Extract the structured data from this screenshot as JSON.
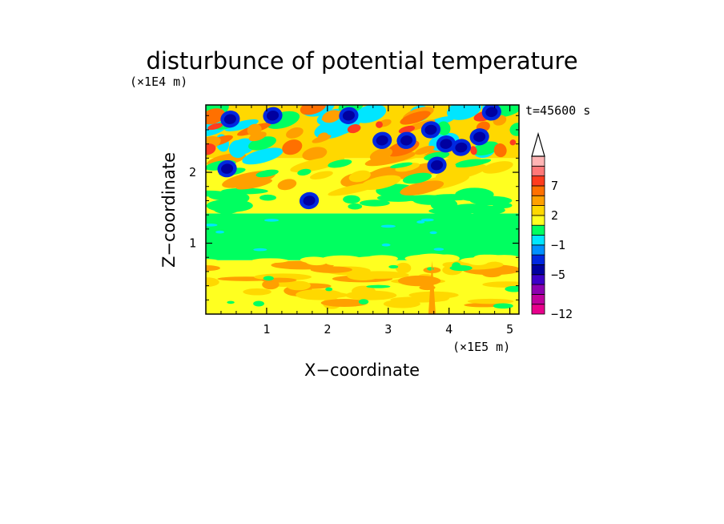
{
  "chart_data": {
    "type": "heatmap",
    "title": "disturbunce of potential temperature",
    "time_label": "t=45600 s",
    "xlabel": "X−coordinate",
    "ylabel": "Z−coordinate",
    "x_unit": "(×1E5 m)",
    "y_unit": "(×1E4 m)",
    "xlim": [
      0,
      5.15
    ],
    "ylim": [
      0,
      2.95
    ],
    "x_ticks": [
      "1",
      "2",
      "3",
      "4",
      "5"
    ],
    "y_ticks": [
      "1",
      "2"
    ],
    "colorbar": {
      "levels": [
        -12,
        -10,
        -8,
        -6,
        -5,
        -4,
        -2,
        -1,
        0,
        1,
        2,
        3,
        5,
        7,
        9,
        11
      ],
      "colors": [
        "#e8008c",
        "#c0009c",
        "#8c00b0",
        "#3c00c8",
        "#0000a0",
        "#0028e0",
        "#0090ff",
        "#00e6ff",
        "#00ff60",
        "#ffff20",
        "#ffd800",
        "#ffa000",
        "#ff7000",
        "#ff3c1e",
        "#ff7878",
        "#ffb4b4",
        "#ffffff"
      ],
      "tick_labels": [
        "7",
        "2",
        "−1",
        "−5",
        "−12"
      ],
      "tick_values": [
        7,
        2,
        -1,
        -5,
        -12
      ],
      "extend": "max"
    },
    "field_bands": [
      {
        "z_from": 0,
        "z_to": 0.75,
        "dominant": 1,
        "note": "yellow with orange patches"
      },
      {
        "z_from": 0.75,
        "z_to": 1.4,
        "dominant": 0,
        "note": "green"
      },
      {
        "z_from": 1.4,
        "z_to": 2.2,
        "dominant": 1,
        "note": "yellow/orange with green"
      },
      {
        "z_from": 2.2,
        "z_to": 2.95,
        "dominant": 3,
        "note": "mixed orange, red, cyan, blue"
      }
    ]
  }
}
